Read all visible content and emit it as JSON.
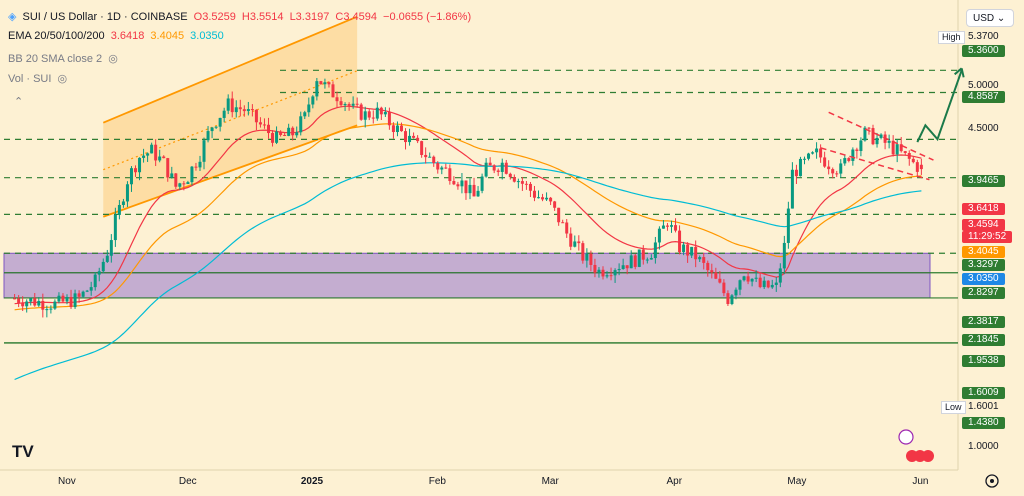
{
  "header": {
    "symbol": "SUI / US Dollar · 1D · COINBASE",
    "open": "O3.5259",
    "high": "H3.5514",
    "low": "L3.3197",
    "close": "C3.4594",
    "change": "−0.0655 (−1.86%)",
    "ema_label": "EMA 20/50/100/200",
    "ema20": "3.6418",
    "ema50": "3.4045",
    "ema100": "3.0350",
    "bb_label": "BB 20 SMA close 2",
    "vol_label": "Vol · SUI"
  },
  "currency": "USD",
  "tag_high": "High",
  "tag_low": "Low",
  "price_tags": {
    "high_value": "5.3700",
    "p5360": "5.3600",
    "p4858": "4.8587",
    "p3946": "3.9465",
    "ema20": "3.6418",
    "last": "3.4594",
    "countdown": "11:29:52",
    "ema50": "3.4045",
    "p3330": "3.3297",
    "ema100": "3.0350",
    "p2830": "2.8297",
    "p2382": "2.3817",
    "p2185": "2.1845",
    "p1954": "1.9538",
    "p1601": "1.6009",
    "low_value": "1.6001",
    "p1438": "1.4380"
  },
  "colors": {
    "background": "#fdf1d3",
    "up": "#089981",
    "down": "#f23645",
    "ema20": "#f23645",
    "ema50": "#ff9800",
    "ema100": "#00bcd4",
    "levels": "#2f7d32",
    "channel": "#ff9800",
    "zone": "#9575cd"
  },
  "chart_data": {
    "type": "candlestick",
    "title": "SUI / US Dollar · 1D · COINBASE",
    "y_scale": "log",
    "ylim": [
      0.95,
      6.2
    ],
    "y_ticks": [
      "5.0000",
      "4.5000",
      "1.0000"
    ],
    "x_ticks": [
      "Nov",
      "Dec",
      "2025",
      "Feb",
      "Mar",
      "Apr",
      "May",
      "Jun"
    ],
    "x_tick_days": [
      0,
      30,
      61,
      92,
      120,
      151,
      181,
      212
    ],
    "horizontal_levels": [
      5.36,
      4.8587,
      3.9465,
      3.33,
      2.8297,
      2.3817,
      2.1845,
      1.9538,
      1.6009,
      1.6001
    ],
    "support_zone": [
      1.9538,
      2.3817
    ],
    "closes": [
      {
        "day": -13,
        "value": 1.95
      },
      {
        "day": -3,
        "value": 1.9
      },
      {
        "day": 3,
        "value": 1.95
      },
      {
        "day": 7,
        "value": 2.1
      },
      {
        "day": 10,
        "value": 2.4
      },
      {
        "day": 13,
        "value": 2.9
      },
      {
        "day": 15,
        "value": 3.3
      },
      {
        "day": 18,
        "value": 3.65
      },
      {
        "day": 21,
        "value": 3.75
      },
      {
        "day": 24,
        "value": 3.55
      },
      {
        "day": 27,
        "value": 3.2
      },
      {
        "day": 30,
        "value": 3.35
      },
      {
        "day": 33,
        "value": 3.7
      },
      {
        "day": 36,
        "value": 4.2
      },
      {
        "day": 40,
        "value": 4.6
      },
      {
        "day": 44,
        "value": 4.5
      },
      {
        "day": 48,
        "value": 4.2
      },
      {
        "day": 52,
        "value": 3.95
      },
      {
        "day": 56,
        "value": 4.05
      },
      {
        "day": 59,
        "value": 4.35
      },
      {
        "day": 62,
        "value": 5.2
      },
      {
        "day": 65,
        "value": 4.9
      },
      {
        "day": 68,
        "value": 4.75
      },
      {
        "day": 71,
        "value": 4.5
      },
      {
        "day": 74,
        "value": 4.4
      },
      {
        "day": 77,
        "value": 4.45
      },
      {
        "day": 80,
        "value": 4.25
      },
      {
        "day": 84,
        "value": 4.0
      },
      {
        "day": 88,
        "value": 3.75
      },
      {
        "day": 92,
        "value": 3.5
      },
      {
        "day": 95,
        "value": 3.4
      },
      {
        "day": 98,
        "value": 3.25
      },
      {
        "day": 101,
        "value": 3.05
      },
      {
        "day": 104,
        "value": 3.45
      },
      {
        "day": 108,
        "value": 3.55
      },
      {
        "day": 112,
        "value": 3.3
      },
      {
        "day": 116,
        "value": 3.1
      },
      {
        "day": 120,
        "value": 2.95
      },
      {
        "day": 124,
        "value": 2.6
      },
      {
        "day": 128,
        "value": 2.35
      },
      {
        "day": 132,
        "value": 2.2
      },
      {
        "day": 136,
        "value": 2.25
      },
      {
        "day": 140,
        "value": 2.3
      },
      {
        "day": 145,
        "value": 2.4
      },
      {
        "day": 149,
        "value": 2.75
      },
      {
        "day": 152,
        "value": 2.45
      },
      {
        "day": 156,
        "value": 2.35
      },
      {
        "day": 160,
        "value": 2.15
      },
      {
        "day": 164,
        "value": 1.95
      },
      {
        "day": 168,
        "value": 2.2
      },
      {
        "day": 172,
        "value": 2.05
      },
      {
        "day": 176,
        "value": 2.05
      },
      {
        "day": 178,
        "value": 2.45
      },
      {
        "day": 180,
        "value": 3.4
      },
      {
        "day": 183,
        "value": 3.55
      },
      {
        "day": 186,
        "value": 3.7
      },
      {
        "day": 189,
        "value": 3.55
      },
      {
        "day": 192,
        "value": 3.45
      },
      {
        "day": 195,
        "value": 3.8
      },
      {
        "day": 198,
        "value": 4.05
      },
      {
        "day": 201,
        "value": 3.95
      },
      {
        "day": 204,
        "value": 3.85
      },
      {
        "day": 207,
        "value": 3.7
      },
      {
        "day": 210,
        "value": 3.55
      },
      {
        "day": 212,
        "value": 3.4594
      }
    ]
  }
}
